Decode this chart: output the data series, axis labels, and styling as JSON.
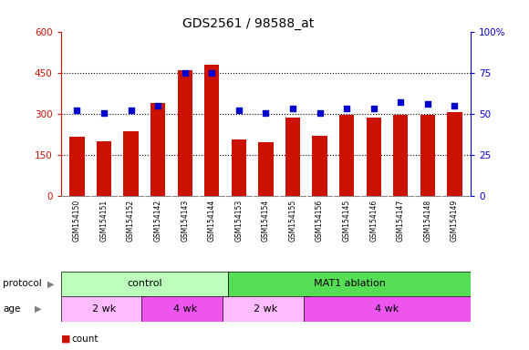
{
  "title": "GDS2561 / 98588_at",
  "samples": [
    "GSM154150",
    "GSM154151",
    "GSM154152",
    "GSM154142",
    "GSM154143",
    "GSM154144",
    "GSM154153",
    "GSM154154",
    "GSM154155",
    "GSM154156",
    "GSM154145",
    "GSM154146",
    "GSM154147",
    "GSM154148",
    "GSM154149"
  ],
  "counts": [
    215,
    200,
    235,
    340,
    460,
    480,
    205,
    195,
    285,
    220,
    295,
    285,
    295,
    295,
    305
  ],
  "percentiles": [
    52,
    50.5,
    52,
    55,
    75,
    75,
    52,
    50.5,
    53,
    50.5,
    53,
    53,
    57,
    56,
    55
  ],
  "bar_color": "#cc1100",
  "dot_color": "#0000cc",
  "ylim_left": [
    0,
    600
  ],
  "ylim_right": [
    0,
    100
  ],
  "yticks_left": [
    0,
    150,
    300,
    450,
    600
  ],
  "yticks_right": [
    0,
    25,
    50,
    75,
    100
  ],
  "protocol_labels": [
    "control",
    "MAT1 ablation"
  ],
  "protocol_control_samples": 6,
  "age_groups": [
    {
      "label": "2 wk",
      "start": 0,
      "end": 3
    },
    {
      "label": "4 wk",
      "start": 3,
      "end": 6
    },
    {
      "label": "2 wk",
      "start": 6,
      "end": 9
    },
    {
      "label": "4 wk",
      "start": 9,
      "end": 15
    }
  ],
  "protocol_color_control": "#bbffbb",
  "protocol_color_mat1": "#55dd55",
  "age_color_2wk": "#ffbbff",
  "age_color_4wk": "#ee55ee",
  "tick_color_left": "#cc1100",
  "tick_color_right": "#0000cc",
  "sample_bg_color": "#cccccc",
  "legend_square_color_count": "#cc1100",
  "legend_square_color_pct": "#0000cc"
}
